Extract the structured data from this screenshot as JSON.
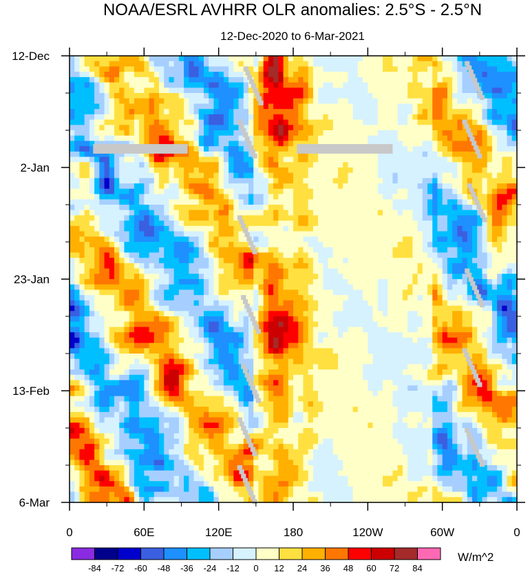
{
  "chart_data": {
    "type": "heatmap",
    "title": "NOAA/ESRL AVHRR OLR anomalies: 2.5°S - 2.5°N",
    "subtitle": "12-Dec-2020 to 6-Mar-2021",
    "x_ticks": [
      "0",
      "60E",
      "120E",
      "180",
      "120W",
      "60W",
      "0"
    ],
    "x_tick_lon": [
      0,
      60,
      120,
      180,
      240,
      300,
      360
    ],
    "x_range": [
      0,
      360
    ],
    "y_ticks": [
      "12-Dec",
      "2-Jan",
      "23-Jan",
      "13-Feb",
      "6-Mar"
    ],
    "y_tick_day": [
      0,
      21,
      42,
      63,
      84
    ],
    "y_range_days": [
      0,
      84
    ],
    "colorbar": {
      "labels": [
        "-84",
        "-72",
        "-60",
        "-48",
        "-36",
        "-24",
        "-12",
        "0",
        "12",
        "24",
        "36",
        "48",
        "60",
        "72",
        "84"
      ],
      "colors": [
        "#8a2be2",
        "#00008b",
        "#0000cd",
        "#3a5fe0",
        "#1e90ff",
        "#00bfff",
        "#a6cfff",
        "#d6f2ff",
        "#ffffc8",
        "#ffe040",
        "#ffb000",
        "#ff7700",
        "#ff0000",
        "#cc0000",
        "#a52a2a",
        "#ff69b4"
      ],
      "units": "W/m^2"
    },
    "missing_color": "#c8c8c8"
  }
}
